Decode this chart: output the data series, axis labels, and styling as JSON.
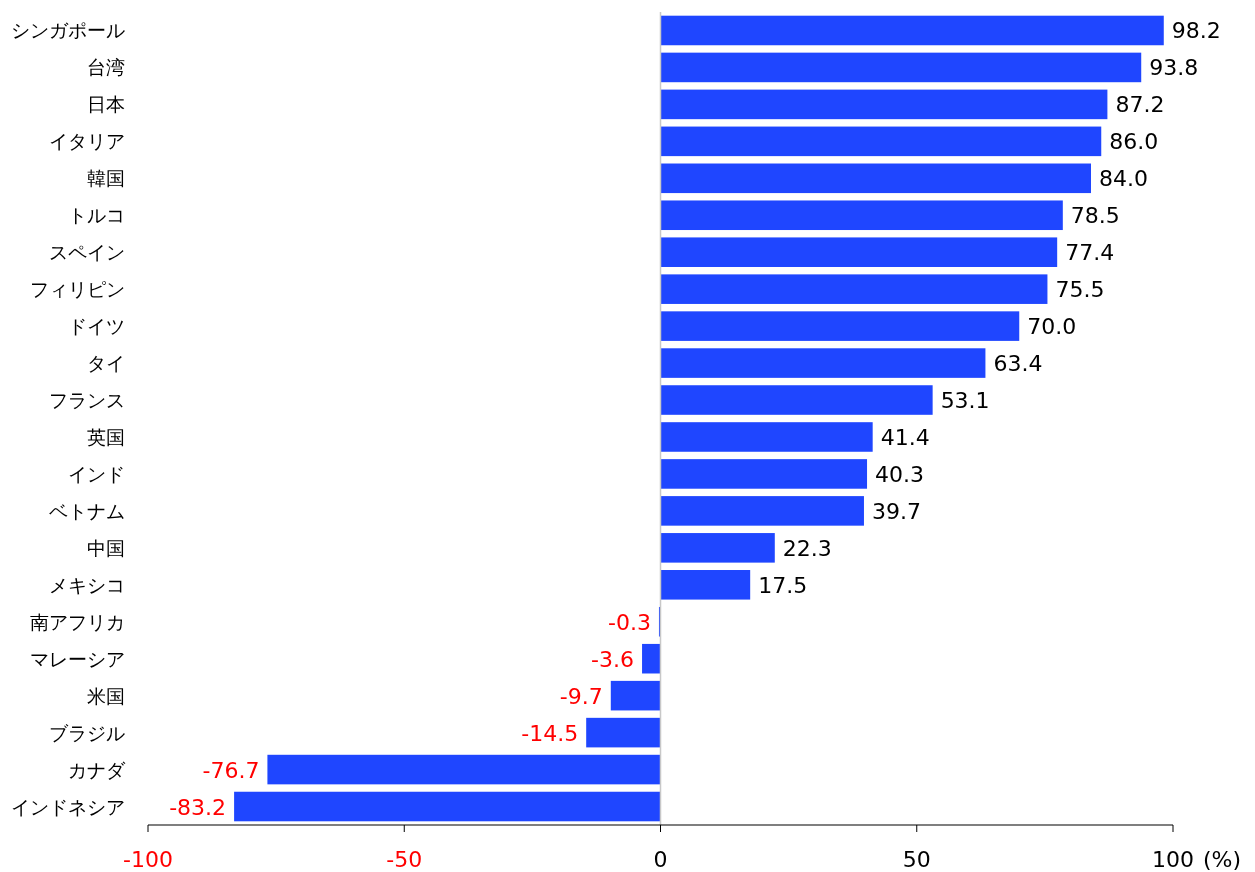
{
  "chart_data": {
    "type": "bar",
    "orientation": "horizontal",
    "xlabel": "(%)",
    "categories": [
      "シンガポール",
      "台湾",
      "日本",
      "イタリア",
      "韓国",
      "トルコ",
      "スペイン",
      "フィリピン",
      "ドイツ",
      "タイ",
      "フランス",
      "英国",
      "インド",
      "ベトナム",
      "中国",
      "メキシコ",
      "南アフリカ",
      "マレーシア",
      "米国",
      "ブラジル",
      "カナダ",
      "インドネシア"
    ],
    "values": [
      98.2,
      93.8,
      87.2,
      86.0,
      84.0,
      78.5,
      77.4,
      75.5,
      70.0,
      63.4,
      53.1,
      41.4,
      40.3,
      39.7,
      22.3,
      17.5,
      -0.3,
      -3.6,
      -9.7,
      -14.5,
      -76.7,
      -83.2
    ],
    "value_labels": [
      "98.2",
      "93.8",
      "87.2",
      "86.0",
      "84.0",
      "78.5",
      "77.4",
      "75.5",
      "70.0",
      "63.4",
      "53.1",
      "41.4",
      "40.3",
      "39.7",
      "22.3",
      "17.5",
      "-0.3",
      "-3.6",
      "-9.7",
      "-14.5",
      "-76.7",
      "-83.2"
    ],
    "color": "#1f46ff",
    "xlim": [
      -100,
      100
    ],
    "xticks": [
      -100,
      -50,
      0,
      50,
      100
    ]
  }
}
